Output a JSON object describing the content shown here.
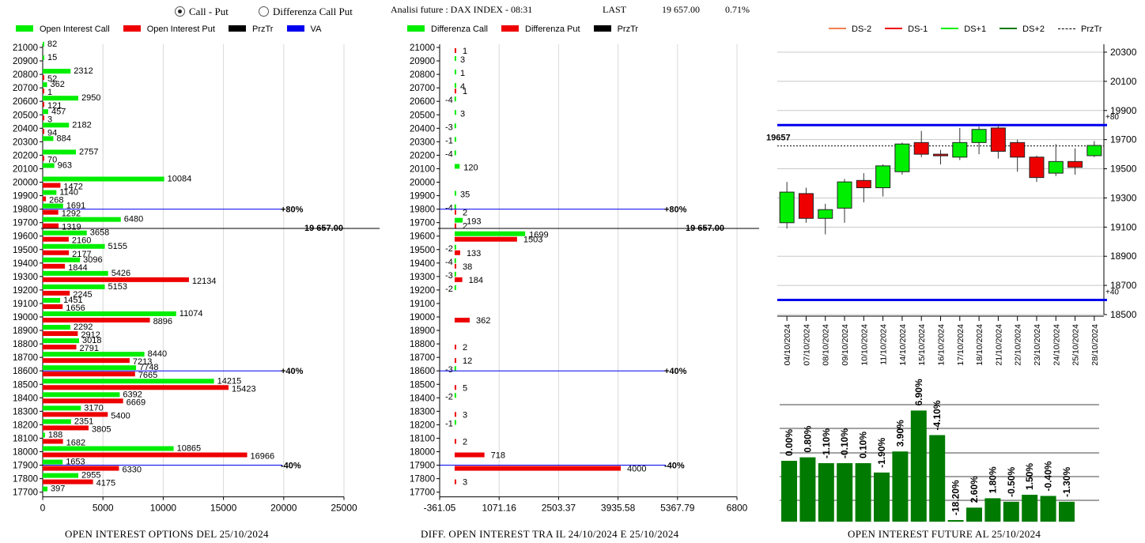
{
  "header": {
    "radio_call_put": "Call - Put",
    "radio_diff": "Differenza Call Put",
    "analysis": "Analisi future : DAX INDEX - 08:31",
    "last_label": "LAST",
    "last_value": "19 657.00",
    "last_change": "0.71%"
  },
  "legend_left": [
    "Open Interest Call",
    "Open Interest Put",
    "PrzTr",
    "VA"
  ],
  "legend_mid": [
    "Differenza Call",
    "Differenza Put",
    "PrzTr"
  ],
  "legend_right": [
    "DS-2",
    "DS-1",
    "DS+1",
    "DS+2",
    "PrzTr"
  ],
  "colors": {
    "call": "#00ee00",
    "put": "#ee0000",
    "va": "#0000ee",
    "darkgreen": "#007a00"
  },
  "footer": {
    "left": "OPEN INTEREST OPTIONS DEL 25/10/2024",
    "mid": "DIFF. OPEN INTEREST TRA IL 24/10/2024 E 25/10/2024",
    "right": "OPEN INTEREST FUTURE AL 25/10/2024"
  },
  "chart_data": [
    {
      "type": "bar",
      "orientation": "horizontal",
      "strikes": [
        21000,
        20900,
        20800,
        20700,
        20600,
        20500,
        20400,
        20300,
        20200,
        20100,
        20000,
        19900,
        19800,
        19700,
        19600,
        19500,
        19400,
        19300,
        19200,
        19100,
        19000,
        18900,
        18800,
        18700,
        18600,
        18500,
        18400,
        18300,
        18200,
        18100,
        18000,
        17900,
        17800,
        17700
      ],
      "series": [
        {
          "name": "Open Interest Call",
          "values": [
            82,
            15,
            2312,
            362,
            2950,
            457,
            2182,
            884,
            2757,
            963,
            10084,
            1140,
            1691,
            6480,
            3658,
            5155,
            3096,
            5426,
            5153,
            1451,
            11074,
            2292,
            3018,
            8440,
            7748,
            14215,
            6392,
            3170,
            2351,
            188,
            10865,
            1653,
            2955,
            397
          ]
        },
        {
          "name": "Open Interest Put",
          "values": [
            null,
            null,
            52,
            1,
            121,
            3,
            94,
            null,
            70,
            null,
            1472,
            268,
            1292,
            1319,
            2160,
            2177,
            1844,
            12134,
            2245,
            1656,
            8896,
            2912,
            2791,
            7213,
            7665,
            15423,
            6669,
            5400,
            3805,
            1682,
            16966,
            6330,
            4175,
            null
          ]
        }
      ],
      "xticks": [
        "0",
        "5000",
        "10000",
        "15000",
        "20000",
        "25000"
      ],
      "xlim": [
        0,
        25000
      ],
      "annotations": [
        {
          "level": 19800,
          "label": "+80%"
        },
        {
          "level": 19657,
          "label": "19 657.00"
        },
        {
          "level": 18600,
          "label": "+40%"
        },
        {
          "level": 17900,
          "label": "-40%"
        }
      ]
    },
    {
      "type": "bar",
      "orientation": "horizontal",
      "strikes": [
        21000,
        20900,
        20800,
        20700,
        20600,
        20500,
        20400,
        20300,
        20200,
        20100,
        20000,
        19900,
        19800,
        19700,
        19600,
        19500,
        19400,
        19300,
        19200,
        19100,
        19000,
        18900,
        18800,
        18700,
        18600,
        18500,
        18400,
        18300,
        18200,
        18100,
        18000,
        17900,
        17800,
        17700
      ],
      "series": [
        {
          "name": "Differenza Call",
          "values": [
            null,
            3,
            1,
            4,
            -4,
            3,
            -3,
            -1,
            -4,
            120,
            null,
            35,
            -4,
            193,
            1699,
            -2,
            -4,
            -3,
            -2,
            null,
            null,
            null,
            null,
            null,
            -3,
            null,
            -2,
            null,
            -1,
            null,
            null,
            null,
            null,
            null
          ]
        },
        {
          "name": "Differenza Put",
          "values": [
            1,
            null,
            null,
            1,
            null,
            null,
            null,
            null,
            null,
            null,
            null,
            null,
            2,
            2,
            1503,
            133,
            38,
            184,
            null,
            null,
            362,
            null,
            2,
            12,
            null,
            5,
            null,
            3,
            null,
            2,
            718,
            4000,
            3,
            null
          ]
        }
      ],
      "xticks": [
        "-361.05",
        "1071.16",
        "2503.37",
        "3935.58",
        "5367.79",
        "6800"
      ],
      "xlim": [
        -361.05,
        6800
      ],
      "annotations": [
        {
          "level": 19800,
          "label": "+80%"
        },
        {
          "level": 19657,
          "label": "19 657.00"
        },
        {
          "level": 18600,
          "label": "+40%"
        },
        {
          "level": 17900,
          "label": "-40%"
        }
      ]
    },
    {
      "type": "candlestick",
      "categories": [
        "04/10/2024",
        "07/10/2024",
        "08/10/2024",
        "09/10/2024",
        "10/10/2024",
        "11/10/2024",
        "14/10/2024",
        "15/10/2024",
        "16/10/2024",
        "17/10/2024",
        "18/10/2024",
        "21/10/2024",
        "22/10/2024",
        "23/10/2024",
        "24/10/2024",
        "25/10/2024",
        "28/10/2024"
      ],
      "ohlc": [
        {
          "o": 19130,
          "h": 19410,
          "l": 19090,
          "c": 19340,
          "dir": "up"
        },
        {
          "o": 19330,
          "h": 19370,
          "l": 19130,
          "c": 19160,
          "dir": "down"
        },
        {
          "o": 19160,
          "h": 19260,
          "l": 19050,
          "c": 19220,
          "dir": "up"
        },
        {
          "o": 19230,
          "h": 19430,
          "l": 19130,
          "c": 19410,
          "dir": "up"
        },
        {
          "o": 19420,
          "h": 19470,
          "l": 19270,
          "c": 19370,
          "dir": "down"
        },
        {
          "o": 19370,
          "h": 19530,
          "l": 19310,
          "c": 19520,
          "dir": "up"
        },
        {
          "o": 19480,
          "h": 19680,
          "l": 19460,
          "c": 19670,
          "dir": "up"
        },
        {
          "o": 19680,
          "h": 19760,
          "l": 19580,
          "c": 19600,
          "dir": "down"
        },
        {
          "o": 19600,
          "h": 19630,
          "l": 19530,
          "c": 19590,
          "dir": "down"
        },
        {
          "o": 19580,
          "h": 19780,
          "l": 19560,
          "c": 19680,
          "dir": "up"
        },
        {
          "o": 19680,
          "h": 19790,
          "l": 19600,
          "c": 19770,
          "dir": "up"
        },
        {
          "o": 19780,
          "h": 19800,
          "l": 19570,
          "c": 19620,
          "dir": "down"
        },
        {
          "o": 19680,
          "h": 19700,
          "l": 19480,
          "c": 19580,
          "dir": "down"
        },
        {
          "o": 19580,
          "h": 19590,
          "l": 19410,
          "c": 19440,
          "dir": "down"
        },
        {
          "o": 19470,
          "h": 19670,
          "l": 19450,
          "c": 19550,
          "dir": "up"
        },
        {
          "o": 19550,
          "h": 19640,
          "l": 19460,
          "c": 19510,
          "dir": "down"
        },
        {
          "o": 19590,
          "h": 19690,
          "l": 19580,
          "c": 19660,
          "dir": "up"
        }
      ],
      "yticks": [
        "20300",
        "20100",
        "19900",
        "19700",
        "19500",
        "19300",
        "19100",
        "18900",
        "18700",
        "18500"
      ],
      "ylim": [
        18500,
        20300
      ],
      "price_label": "19657",
      "price": 19657,
      "bands": [
        {
          "level": 19800,
          "label": "+80"
        },
        {
          "level": 18600,
          "label": "+40"
        }
      ]
    },
    {
      "type": "bar",
      "labels": [
        "0.00%",
        "0.80%",
        "-1.10%",
        "-0.10%",
        "0.10%",
        "-1.90%",
        "3.90%",
        "6.90%",
        "-4.10%",
        "-18.20%",
        "2.60%",
        "1.80%",
        "-0.50%",
        "1.50%",
        "-0.40%",
        "-1.30%"
      ],
      "values": [
        0.0,
        0.8,
        -1.1,
        -0.1,
        0.1,
        -1.9,
        3.9,
        6.9,
        -4.1,
        -18.2,
        2.6,
        1.8,
        -0.5,
        1.5,
        -0.4,
        -1.3
      ],
      "relative_height": [
        0.52,
        0.55,
        0.5,
        0.5,
        0.5,
        0.42,
        0.6,
        0.95,
        0.74,
        0.01,
        0.12,
        0.2,
        0.17,
        0.23,
        0.22,
        0.17
      ]
    }
  ]
}
